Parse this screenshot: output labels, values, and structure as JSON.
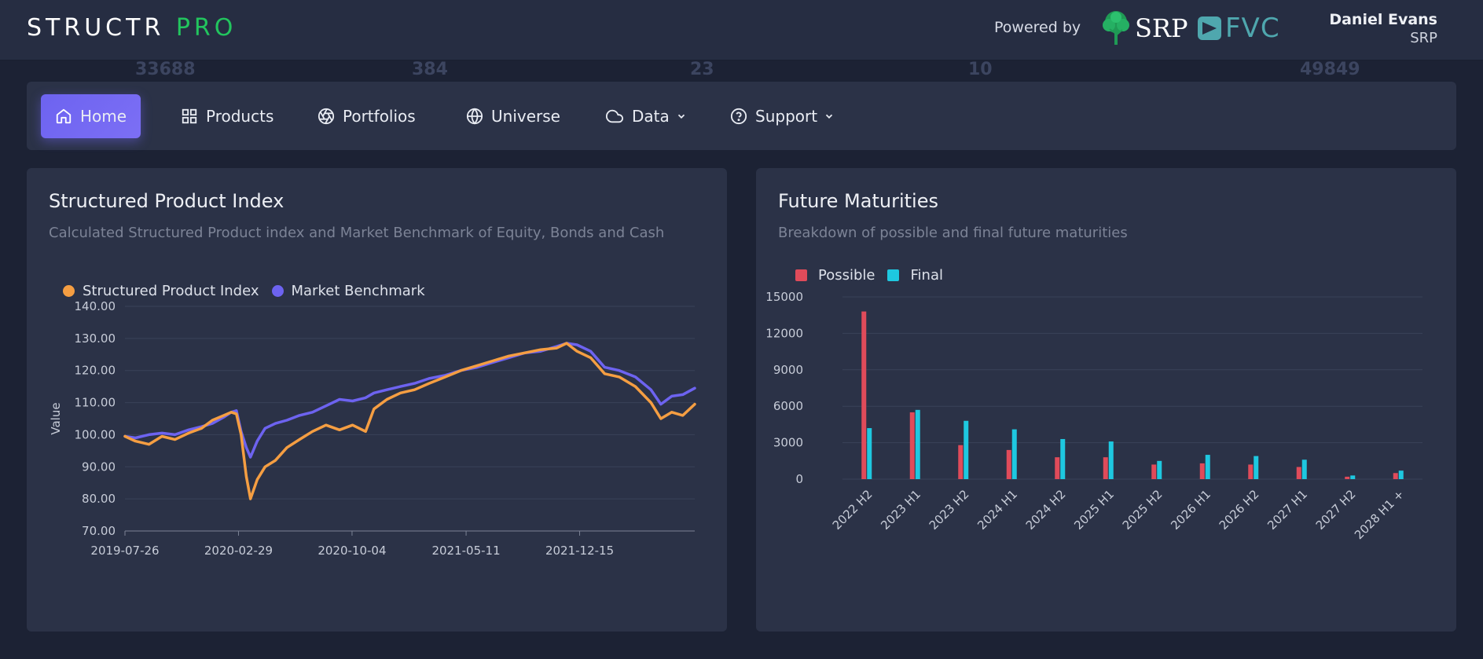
{
  "header": {
    "logo_part1": "STRUCTR",
    "logo_part2": "PRO",
    "powered_by": "Powered by",
    "partner1": "SRP",
    "partner2": "FVC",
    "user_name": "Daniel Evans",
    "user_org": "SRP",
    "accent_green": "#22c55e"
  },
  "ghost_stats": [
    "33688",
    "384",
    "23",
    "10",
    "49849"
  ],
  "nav": {
    "items": [
      {
        "label": "Home",
        "icon": "home-icon",
        "active": true
      },
      {
        "label": "Products",
        "icon": "grid-icon"
      },
      {
        "label": "Portfolios",
        "icon": "aperture-icon"
      },
      {
        "label": "Universe",
        "icon": "globe-icon"
      },
      {
        "label": "Data",
        "icon": "cloud-icon",
        "dropdown": true
      },
      {
        "label": "Support",
        "icon": "help-circle-icon",
        "dropdown": true
      }
    ],
    "active_color": "#6d63f0"
  },
  "index_card": {
    "title": "Structured Product Index",
    "subtitle": "Calculated Structured Product index and Market Benchmark of Equity, Bonds and Cash",
    "chart_data": {
      "type": "line",
      "ylabel": "Value",
      "ylim": [
        70,
        140
      ],
      "yticks": [
        "140.00",
        "130.00",
        "120.00",
        "110.00",
        "100.00",
        "90.00",
        "80.00",
        "70.00"
      ],
      "xticks": [
        "2019-07-26",
        "2020-02-29",
        "2020-10-04",
        "2021-05-11",
        "2021-12-15"
      ],
      "x_range": [
        "2019-07-26",
        "2022-07-24"
      ],
      "legend_position": "top-left",
      "grid": true,
      "series": [
        {
          "name": "Structured Product Index",
          "color": "#f59e42",
          "points": [
            [
              "2019-07-26",
              99.5
            ],
            [
              "2019-08-15",
              98.0
            ],
            [
              "2019-09-10",
              97.0
            ],
            [
              "2019-10-05",
              99.5
            ],
            [
              "2019-10-30",
              98.5
            ],
            [
              "2019-11-25",
              100.5
            ],
            [
              "2019-12-20",
              102.0
            ],
            [
              "2020-01-10",
              104.5
            ],
            [
              "2020-02-01",
              106.0
            ],
            [
              "2020-02-15",
              107.0
            ],
            [
              "2020-02-25",
              106.5
            ],
            [
              "2020-03-05",
              100.0
            ],
            [
              "2020-03-15",
              87.0
            ],
            [
              "2020-03-23",
              80.0
            ],
            [
              "2020-04-05",
              86.0
            ],
            [
              "2020-04-20",
              90.0
            ],
            [
              "2020-05-10",
              92.0
            ],
            [
              "2020-06-01",
              96.0
            ],
            [
              "2020-06-25",
              98.5
            ],
            [
              "2020-07-20",
              101.0
            ],
            [
              "2020-08-15",
              103.0
            ],
            [
              "2020-09-10",
              101.5
            ],
            [
              "2020-10-05",
              103.0
            ],
            [
              "2020-10-30",
              101.0
            ],
            [
              "2020-11-15",
              108.0
            ],
            [
              "2020-12-10",
              111.0
            ],
            [
              "2021-01-05",
              113.0
            ],
            [
              "2021-02-01",
              114.0
            ],
            [
              "2021-03-01",
              116.0
            ],
            [
              "2021-04-01",
              118.0
            ],
            [
              "2021-05-01",
              120.0
            ],
            [
              "2021-06-01",
              121.5
            ],
            [
              "2021-07-01",
              123.0
            ],
            [
              "2021-08-01",
              124.5
            ],
            [
              "2021-09-01",
              125.5
            ],
            [
              "2021-10-01",
              126.5
            ],
            [
              "2021-11-01",
              127.0
            ],
            [
              "2021-11-20",
              128.5
            ],
            [
              "2021-12-10",
              126.0
            ],
            [
              "2022-01-05",
              124.0
            ],
            [
              "2022-02-01",
              119.0
            ],
            [
              "2022-03-01",
              118.0
            ],
            [
              "2022-04-01",
              115.0
            ],
            [
              "2022-05-01",
              110.0
            ],
            [
              "2022-05-20",
              105.0
            ],
            [
              "2022-06-10",
              107.0
            ],
            [
              "2022-07-01",
              106.0
            ],
            [
              "2022-07-24",
              109.5
            ]
          ]
        },
        {
          "name": "Market Benchmark",
          "color": "#6d63f0",
          "points": [
            [
              "2019-07-26",
              99.5
            ],
            [
              "2019-08-15",
              99.0
            ],
            [
              "2019-09-10",
              100.0
            ],
            [
              "2019-10-05",
              100.5
            ],
            [
              "2019-10-30",
              100.0
            ],
            [
              "2019-11-25",
              101.5
            ],
            [
              "2019-12-20",
              102.5
            ],
            [
              "2020-01-10",
              103.5
            ],
            [
              "2020-02-01",
              105.5
            ],
            [
              "2020-02-15",
              107.0
            ],
            [
              "2020-02-25",
              107.5
            ],
            [
              "2020-03-05",
              101.0
            ],
            [
              "2020-03-15",
              96.0
            ],
            [
              "2020-03-23",
              93.0
            ],
            [
              "2020-04-05",
              98.0
            ],
            [
              "2020-04-20",
              102.0
            ],
            [
              "2020-05-10",
              103.5
            ],
            [
              "2020-06-01",
              104.5
            ],
            [
              "2020-06-25",
              106.0
            ],
            [
              "2020-07-20",
              107.0
            ],
            [
              "2020-08-15",
              109.0
            ],
            [
              "2020-09-10",
              111.0
            ],
            [
              "2020-10-05",
              110.5
            ],
            [
              "2020-10-30",
              111.5
            ],
            [
              "2020-11-15",
              113.0
            ],
            [
              "2020-12-10",
              114.0
            ],
            [
              "2021-01-05",
              115.0
            ],
            [
              "2021-02-01",
              116.0
            ],
            [
              "2021-03-01",
              117.5
            ],
            [
              "2021-04-01",
              118.5
            ],
            [
              "2021-05-01",
              120.0
            ],
            [
              "2021-06-01",
              121.0
            ],
            [
              "2021-07-01",
              122.5
            ],
            [
              "2021-08-01",
              124.0
            ],
            [
              "2021-09-01",
              125.5
            ],
            [
              "2021-10-01",
              126.0
            ],
            [
              "2021-11-01",
              127.5
            ],
            [
              "2021-11-20",
              128.5
            ],
            [
              "2021-12-10",
              128.0
            ],
            [
              "2022-01-05",
              126.0
            ],
            [
              "2022-02-01",
              121.0
            ],
            [
              "2022-03-01",
              120.0
            ],
            [
              "2022-04-01",
              118.0
            ],
            [
              "2022-05-01",
              114.0
            ],
            [
              "2022-05-20",
              109.5
            ],
            [
              "2022-06-10",
              112.0
            ],
            [
              "2022-07-01",
              112.5
            ],
            [
              "2022-07-24",
              114.5
            ]
          ]
        }
      ]
    }
  },
  "maturities_card": {
    "title": "Future Maturities",
    "subtitle": "Breakdown of possible and final future maturities",
    "chart_data": {
      "type": "bar",
      "categories": [
        "2022 H2",
        "2023 H1",
        "2023 H2",
        "2024 H1",
        "2024 H2",
        "2025 H1",
        "2025 H2",
        "2026 H1",
        "2026 H2",
        "2027 H1",
        "2027 H2",
        "2028 H1 +"
      ],
      "ylim": [
        0,
        15000
      ],
      "yticks": [
        "15000",
        "12000",
        "9000",
        "6000",
        "3000",
        "0"
      ],
      "legend_position": "top-left",
      "grid": true,
      "series": [
        {
          "name": "Possible",
          "color": "#e04b5a",
          "values": [
            13800,
            5500,
            2800,
            2400,
            1800,
            1800,
            1200,
            1300,
            1200,
            1000,
            200,
            500
          ]
        },
        {
          "name": "Final",
          "color": "#1ec8e0",
          "values": [
            4200,
            5700,
            4800,
            4100,
            3300,
            3100,
            1500,
            2000,
            1900,
            1600,
            300,
            700
          ]
        }
      ]
    }
  }
}
